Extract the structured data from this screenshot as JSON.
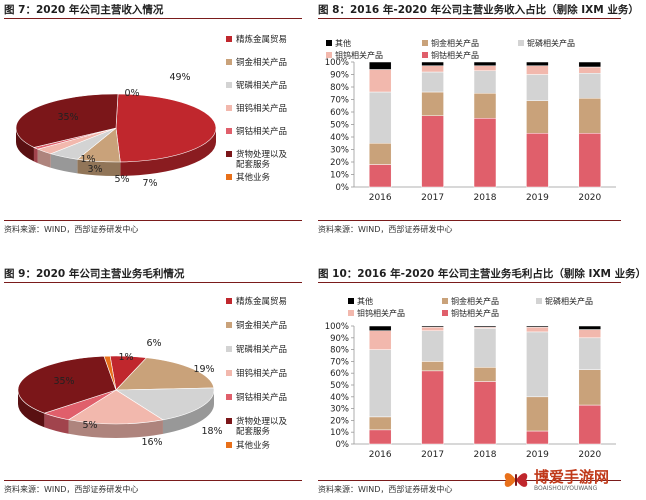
{
  "panels": {
    "fig7": {
      "title": "图 7：2020 年公司主营收入情况",
      "source": "资料来源：WIND，西部证券研发中心"
    },
    "fig8": {
      "title": "图 8：2016 年-2020 年公司主营业务收入占比（剔除 IXM 业务）",
      "source": "资料来源：WIND，西部证券研发中心"
    },
    "fig9": {
      "title": "图 9：2020 年公司主营业务毛利情况",
      "source": "资料来源：WIND，西部证券研发中心"
    },
    "fig10": {
      "title": "图 10：2016 年-2020 年公司主营业务毛利占比（剔除 IXM 业务）",
      "source": "资料来源：WIND，西部证券研发中心"
    }
  },
  "colors": {
    "精炼金属贸易": "#c0272d",
    "铜金相关产品": "#c9a27a",
    "铌磷相关产品": "#d3d3d3",
    "钼钨相关产品": "#f2b8ad",
    "铜钴相关产品": "#e05f6b",
    "货物处理以及配套服务": "#7b1619",
    "其他业务": "#e8701a",
    "rule": "#7a1b1b"
  },
  "chart_data": [
    {
      "id": "fig7",
      "type": "pie",
      "legend_position": "right",
      "legend": [
        "精炼金属贸易",
        "铜金相关产品",
        "铌磷相关产品",
        "钼钨相关产品",
        "铜钴相关产品",
        "货物处理以及配套服务",
        "其他业务"
      ],
      "slices": [
        {
          "name": "精炼金属贸易",
          "value": 49,
          "label": "49%"
        },
        {
          "name": "铜金相关产品",
          "value": 7,
          "label": "7%"
        },
        {
          "name": "铌磷相关产品",
          "value": 5,
          "label": "5%"
        },
        {
          "name": "钼钨相关产品",
          "value": 3,
          "label": "3%"
        },
        {
          "name": "铜钴相关产品",
          "value": 1,
          "label": "1%"
        },
        {
          "name": "货物处理以及配套服务",
          "value": 35,
          "label": "35%"
        },
        {
          "name": "其他业务",
          "value": 0,
          "label": "0%"
        }
      ]
    },
    {
      "id": "fig8",
      "type": "bar",
      "stacked": true,
      "legend_position": "top",
      "legend": [
        "其他",
        "铜金相关产品",
        "铌磷相关产品",
        "钼钨相关产品",
        "铜钴相关产品"
      ],
      "categories": [
        "2016",
        "2017",
        "2018",
        "2019",
        "2020"
      ],
      "y_ticks": [
        "0%",
        "10%",
        "20%",
        "30%",
        "40%",
        "50%",
        "60%",
        "70%",
        "80%",
        "90%",
        "100%"
      ],
      "ylim": [
        0,
        100
      ],
      "series": [
        {
          "name": "铜钴相关产品",
          "values": [
            18,
            57,
            55,
            43,
            43
          ]
        },
        {
          "name": "铜金相关产品",
          "values": [
            17,
            19,
            20,
            26,
            28
          ]
        },
        {
          "name": "铌磷相关产品",
          "values": [
            41,
            16,
            18,
            21,
            20
          ]
        },
        {
          "name": "钼钨相关产品",
          "values": [
            18,
            5,
            4,
            7,
            5
          ]
        },
        {
          "name": "其他",
          "values": [
            6,
            3,
            3,
            3,
            4
          ]
        }
      ]
    },
    {
      "id": "fig9",
      "type": "pie",
      "legend_position": "right",
      "legend": [
        "精炼金属贸易",
        "铜金相关产品",
        "铌磷相关产品",
        "钼钨相关产品",
        "铜钴相关产品",
        "货物处理以及配套服务",
        "其他业务"
      ],
      "slices": [
        {
          "name": "精炼金属贸易",
          "value": 6,
          "label": "6%"
        },
        {
          "name": "铜金相关产品",
          "value": 19,
          "label": "19%"
        },
        {
          "name": "铌磷相关产品",
          "value": 18,
          "label": "18%"
        },
        {
          "name": "钼钨相关产品",
          "value": 16,
          "label": "16%"
        },
        {
          "name": "铜钴相关产品",
          "value": 5,
          "label": "5%"
        },
        {
          "name": "货物处理以及配套服务",
          "value": 35,
          "label": "35%"
        },
        {
          "name": "其他业务",
          "value": 1,
          "label": "1%"
        }
      ]
    },
    {
      "id": "fig10",
      "type": "bar",
      "stacked": true,
      "legend_position": "top",
      "legend": [
        "其他",
        "铜金相关产品",
        "铌磷相关产品",
        "钼钨相关产品",
        "铜钴相关产品"
      ],
      "categories": [
        "2016",
        "2017",
        "2018",
        "2019",
        "2020"
      ],
      "y_ticks": [
        "0%",
        "10%",
        "20%",
        "30%",
        "40%",
        "50%",
        "60%",
        "70%",
        "80%",
        "90%",
        "100%"
      ],
      "ylim": [
        0,
        100
      ],
      "series": [
        {
          "name": "铜钴相关产品",
          "values": [
            12,
            62,
            53,
            11,
            33
          ]
        },
        {
          "name": "铜金相关产品",
          "values": [
            11,
            8,
            12,
            29,
            30
          ]
        },
        {
          "name": "铌磷相关产品",
          "values": [
            57,
            26,
            33,
            55,
            27
          ]
        },
        {
          "name": "钼钨相关产品",
          "values": [
            16,
            3,
            1,
            4,
            7
          ]
        },
        {
          "name": "其他",
          "values": [
            4,
            1,
            1,
            1,
            3
          ]
        }
      ]
    }
  ],
  "watermark": {
    "main": "博爱手游网",
    "sub": "BOAISHOUYOUWANG"
  }
}
